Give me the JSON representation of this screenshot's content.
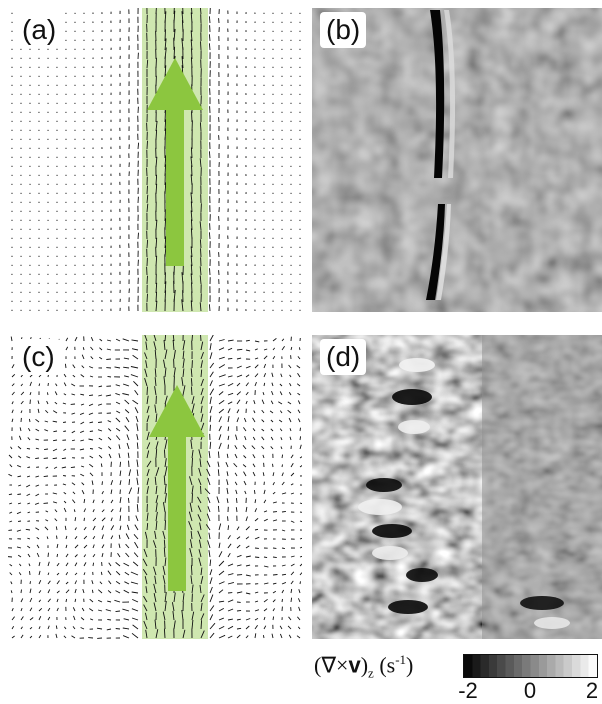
{
  "panels": {
    "a": {
      "label": "(a)"
    },
    "b": {
      "label": "(b)"
    },
    "c": {
      "label": "(c)"
    },
    "d": {
      "label": "(d)"
    }
  },
  "colors": {
    "band": "#cfe7b0",
    "arrow": "#8cc63f",
    "vector": "#111111"
  },
  "colorbar": {
    "label_prefix": "(∇×",
    "label_bold": "v",
    "label_close": ")",
    "label_sub": "z",
    "label_unit": " (s",
    "label_sup": "-1",
    "label_end": ")",
    "ticks": [
      "-2",
      "0",
      "2"
    ],
    "min": -2,
    "max": 2,
    "colormap": "grayscale black-to-white"
  }
}
